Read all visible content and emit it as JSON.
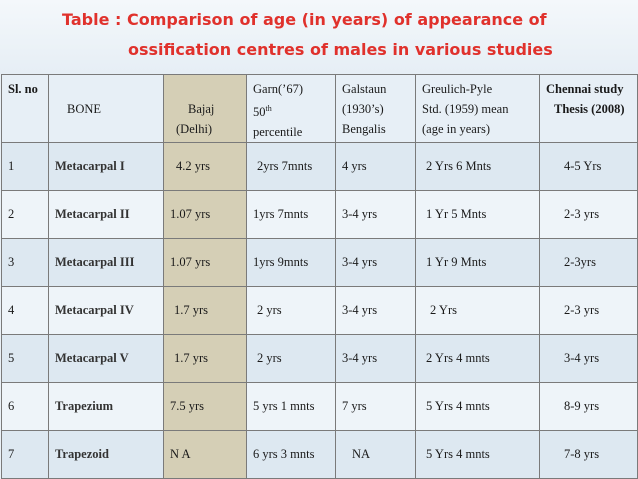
{
  "title": {
    "line1": "Table : Comparison of age (in years) of appearance of",
    "line2": "ossification centres of males in various studies"
  },
  "headers": {
    "sl": "Sl.  no",
    "bone": "BONE",
    "bajaj_l1": "Bajaj",
    "bajaj_l2": "(Delhi)",
    "garn_l1": "Garn(’67)",
    "garn_l2": "50",
    "garn_sup": "th",
    "garn_l3": "percentile",
    "galstaun_l1": "Galstaun",
    "galstaun_l2": "(1930’s)",
    "galstaun_l3": "Bengalis",
    "greulich_l1": "Greulich-Pyle",
    "greulich_l2": "Std. (1959) mean",
    "greulich_l3": "(age in years)",
    "chennai_l1": "Chennai study",
    "chennai_l2": "Thesis (2008)"
  },
  "rows": [
    {
      "sl": "1",
      "bone": "Metacarpal I",
      "bajaj": "4.2 yrs",
      "garn": "2yrs 7mnts",
      "galstaun": "4 yrs",
      "greulich": "2 Yrs 6 Mnts",
      "chennai": "4-5 Yrs"
    },
    {
      "sl": "2",
      "bone": "Metacarpal  II",
      "bajaj": "1.07 yrs",
      "garn": "1yrs  7mnts",
      "galstaun": "3-4 yrs",
      "greulich": "1  Yr  5 Mnts",
      "chennai": "2-3 yrs"
    },
    {
      "sl": "3",
      "bone": "Metacarpal III",
      "bajaj": "1.07 yrs",
      "garn": "1yrs  9mnts",
      "galstaun": "3-4 yrs",
      "greulich": "1  Yr  9 Mnts",
      "chennai": "2-3yrs"
    },
    {
      "sl": "4",
      "bone": "Metacarpal IV",
      "bajaj": "1.7 yrs",
      "garn": "2 yrs",
      "galstaun": "3-4 yrs",
      "greulich": "2 Yrs",
      "chennai": "2-3 yrs"
    },
    {
      "sl": "5",
      "bone": "Metacarpal V",
      "bajaj": "1.7 yrs",
      "garn": "2 yrs",
      "galstaun": "3-4 yrs",
      "greulich": "2 Yrs 4 mnts",
      "chennai": "3-4 yrs"
    },
    {
      "sl": "6",
      "bone": "Trapezium",
      "bajaj": "7.5 yrs",
      "garn": "5 yrs 1 mnts",
      "galstaun": "7 yrs",
      "greulich": "5 Yrs 4 mnts",
      "chennai": "8-9 yrs"
    },
    {
      "sl": "7",
      "bone": "Trapezoid",
      "bajaj": "N A",
      "garn": "6 yrs 3 mnts",
      "galstaun": "NA",
      "greulich": "5 Yrs 4 mnts",
      "chennai": "7-8 yrs"
    }
  ],
  "colors": {
    "title": "#e0312c",
    "bajaj_column": "#d5cfb6",
    "row_odd": "#dde8f1",
    "row_even": "#eef4f9",
    "border": "#7a7a7a"
  }
}
